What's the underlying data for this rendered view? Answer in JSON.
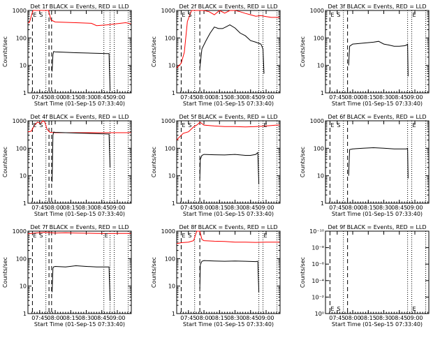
{
  "figure": {
    "background": "#ffffff",
    "axis_color": "#000000",
    "events_color": "#000000",
    "lld_color": "#ff0000"
  },
  "chart_data": [
    {
      "type": "line",
      "title": "Det 1f BLACK = Events, RED = LLD",
      "xlabel": "Start Time (01-Sep-15 07:33:40)",
      "ylabel": "Counts/sec",
      "x_ticks": [
        "07:45",
        "08:00",
        "08:15",
        "08:30",
        "08:45",
        "09:00"
      ],
      "x_tick_minutes": [
        45,
        60,
        75,
        90,
        105,
        120
      ],
      "xlim_minutes": [
        33.67,
        133.5
      ],
      "y_scale": "log",
      "ylim": [
        1,
        1000
      ],
      "y_tick_labels": [
        "1",
        "10",
        "100",
        "1000"
      ],
      "y_tick_values": [
        1,
        10,
        100,
        1000
      ],
      "markers": [
        {
          "label": "E",
          "minute": 38
        },
        {
          "label": "S",
          "minute": 44
        }
      ],
      "marker_lines_dashed": [
        38,
        54,
        56.5
      ],
      "marker_lines_dotted": [
        51,
        107,
        113,
        117,
        130.5
      ],
      "series": [
        {
          "color": "#ff0000",
          "x": [
            33.7,
            35,
            38.5,
            42,
            45,
            50,
            53.5,
            56,
            60,
            70,
            80,
            95,
            100,
            110,
            120,
            128,
            133
          ],
          "y": [
            350,
            360,
            1000,
            1000,
            1000,
            1000,
            1000,
            450,
            380,
            370,
            360,
            340,
            280,
            300,
            330,
            360,
            330
          ]
        },
        {
          "color": "#000000",
          "x": [
            57,
            57.8,
            58.5,
            60,
            70,
            80,
            95,
            110,
            112,
            113
          ],
          "y": [
            6,
            25,
            32,
            31,
            30,
            29,
            28,
            27,
            27,
            1.2
          ]
        }
      ]
    },
    {
      "type": "line",
      "title": "Det 2f BLACK = Events, RED = LLD",
      "xlabel": "Start Time (01-Sep-15 07:33:40)",
      "ylabel": "Counts/sec",
      "x_ticks": [
        "07:45",
        "08:00",
        "08:15",
        "08:30",
        "08:45",
        "09:00"
      ],
      "x_tick_minutes": [
        45,
        60,
        75,
        90,
        105,
        120
      ],
      "xlim_minutes": [
        33.67,
        133.5
      ],
      "y_scale": "log",
      "ylim": [
        1,
        1000
      ],
      "y_tick_labels": [
        "1",
        "10",
        "100",
        "1000"
      ],
      "y_tick_values": [
        1,
        10,
        100,
        1000
      ],
      "markers": [
        {
          "label": "E",
          "minute": 38
        },
        {
          "label": "S",
          "minute": 44
        }
      ],
      "marker_lines_dashed": [
        38,
        56
      ],
      "marker_lines_dotted": [
        51,
        113,
        117,
        130.5
      ],
      "series": [
        {
          "color": "#ff0000",
          "x": [
            33.7,
            38,
            41,
            44,
            48,
            52,
            56,
            60,
            65,
            70,
            75,
            80,
            85,
            90,
            95,
            100,
            105,
            110,
            115,
            120,
            125,
            128,
            133
          ],
          "y": [
            8,
            12,
            30,
            400,
            1000,
            1000,
            1000,
            1200,
            900,
            700,
            1000,
            800,
            1000,
            1200,
            900,
            780,
            700,
            620,
            650,
            600,
            560,
            560,
            560
          ]
        },
        {
          "color": "#000000",
          "x": [
            56,
            58,
            62,
            66,
            70,
            74,
            78,
            81,
            85,
            90,
            95,
            100,
            105,
            110,
            115,
            117,
            118
          ],
          "y": [
            8,
            40,
            80,
            150,
            250,
            220,
            220,
            250,
            300,
            230,
            150,
            120,
            80,
            70,
            60,
            40,
            5
          ]
        }
      ]
    },
    {
      "type": "line",
      "title": "Det 3f BLACK = Events, RED = LLD",
      "xlabel": "Start Time (01-Sep-15 07:33:40)",
      "ylabel": "Counts/sec",
      "x_ticks": [
        "07:45",
        "08:00",
        "08:15",
        "08:30",
        "08:45",
        "09:00"
      ],
      "x_tick_minutes": [
        45,
        60,
        75,
        90,
        105,
        120
      ],
      "xlim_minutes": [
        33.67,
        133.5
      ],
      "y_scale": "log",
      "ylim": [
        1,
        1000
      ],
      "y_tick_labels": [
        "1",
        "10",
        "100",
        "1000"
      ],
      "y_tick_values": [
        1,
        10,
        100,
        1000
      ],
      "markers": [
        {
          "label": "E",
          "minute": 38
        },
        {
          "label": "S",
          "minute": 44
        },
        {
          "label": "E",
          "minute": 117
        }
      ],
      "marker_lines_dashed": [
        38,
        55
      ],
      "marker_lines_dotted": [
        51,
        113,
        117,
        130.5
      ],
      "series": [
        {
          "color": "#000000",
          "x": [
            56,
            57,
            60,
            70,
            80,
            85,
            90,
            95,
            100,
            105,
            110,
            112,
            113,
            113.5
          ],
          "y": [
            10,
            50,
            60,
            65,
            70,
            75,
            60,
            55,
            50,
            50,
            52,
            55,
            60,
            4
          ]
        }
      ]
    },
    {
      "type": "line",
      "title": "Det 4f BLACK = Events, RED = LLD",
      "xlabel": "Start Time (01-Sep-15 07:33:40)",
      "ylabel": "Counts/sec",
      "x_ticks": [
        "07:45",
        "08:00",
        "08:15",
        "08:30",
        "08:45",
        "09:00"
      ],
      "x_tick_minutes": [
        45,
        60,
        75,
        90,
        105,
        120
      ],
      "xlim_minutes": [
        33.67,
        133.5
      ],
      "y_scale": "log",
      "ylim": [
        1,
        1000
      ],
      "y_tick_labels": [
        "1",
        "10",
        "100",
        "1000"
      ],
      "y_tick_values": [
        1,
        10,
        100,
        1000
      ],
      "markers": [
        {
          "label": "E",
          "minute": 38
        },
        {
          "label": "S",
          "minute": 44
        }
      ],
      "marker_lines_dashed": [
        38,
        54,
        56.5
      ],
      "marker_lines_dotted": [
        51,
        107,
        113,
        117,
        130.5
      ],
      "series": [
        {
          "color": "#ff0000",
          "x": [
            33.7,
            37,
            40,
            43,
            46,
            48,
            50,
            52,
            55,
            60,
            80,
            100,
            120,
            133
          ],
          "y": [
            400,
            420,
            700,
            900,
            800,
            1000,
            900,
            500,
            380,
            370,
            370,
            370,
            370,
            370
          ]
        },
        {
          "color": "#000000",
          "x": [
            57,
            57.8,
            58.5,
            60,
            70,
            80,
            90,
            100,
            110,
            112,
            113
          ],
          "y": [
            6,
            300,
            390,
            380,
            370,
            360,
            350,
            340,
            330,
            330,
            20
          ]
        }
      ]
    },
    {
      "type": "line",
      "title": "Det 5f BLACK = Events, RED = LLD",
      "xlabel": "Start Time (01-Sep-15 07:33:40)",
      "ylabel": "Counts/sec",
      "x_ticks": [
        "07:45",
        "08:00",
        "08:15",
        "08:30",
        "08:45",
        "09:00"
      ],
      "x_tick_minutes": [
        45,
        60,
        75,
        90,
        105,
        120
      ],
      "xlim_minutes": [
        33.67,
        133.5
      ],
      "y_scale": "log",
      "ylim": [
        1,
        1000
      ],
      "y_tick_labels": [
        "1",
        "10",
        "100",
        "1000"
      ],
      "y_tick_values": [
        1,
        10,
        100,
        1000
      ],
      "markers": [
        {
          "label": "E",
          "minute": 38
        },
        {
          "label": "S",
          "minute": 44
        },
        {
          "label": "E",
          "minute": 117
        }
      ],
      "marker_lines_dashed": [
        38,
        56
      ],
      "marker_lines_dotted": [
        51,
        113,
        117,
        130.5
      ],
      "series": [
        {
          "color": "#ff0000",
          "x": [
            33.7,
            36,
            40,
            45,
            50,
            53,
            55,
            56,
            60,
            70,
            80,
            90,
            100,
            110,
            120,
            130,
            133
          ],
          "y": [
            200,
            250,
            350,
            400,
            600,
            700,
            800,
            900,
            700,
            650,
            620,
            620,
            600,
            620,
            650,
            700,
            700
          ]
        },
        {
          "color": "#000000",
          "x": [
            56,
            56.5,
            58,
            60,
            70,
            80,
            90,
            100,
            105,
            110,
            112,
            113
          ],
          "y": [
            8,
            40,
            55,
            60,
            58,
            57,
            60,
            55,
            55,
            60,
            70,
            5
          ]
        }
      ]
    },
    {
      "type": "line",
      "title": "Det 6f BLACK = Events, RED = LLD",
      "xlabel": "Start Time (01-Sep-15 07:33:40)",
      "ylabel": "Counts/sec",
      "x_ticks": [
        "07:45",
        "08:00",
        "08:15",
        "08:30",
        "08:45",
        "09:00"
      ],
      "x_tick_minutes": [
        45,
        60,
        75,
        90,
        105,
        120
      ],
      "xlim_minutes": [
        33.67,
        133.5
      ],
      "y_scale": "log",
      "ylim": [
        1,
        1000
      ],
      "y_tick_labels": [
        "1",
        "10",
        "100",
        "1000"
      ],
      "y_tick_values": [
        1,
        10,
        100,
        1000
      ],
      "markers": [
        {
          "label": "E",
          "minute": 38
        },
        {
          "label": "S",
          "minute": 44
        },
        {
          "label": "E",
          "minute": 117
        }
      ],
      "marker_lines_dashed": [
        38,
        55
      ],
      "marker_lines_dotted": [
        51,
        113,
        117,
        130.5
      ],
      "series": [
        {
          "color": "#000000",
          "x": [
            56,
            57,
            60,
            70,
            80,
            90,
            100,
            110,
            112,
            113,
            113.5
          ],
          "y": [
            10,
            90,
            95,
            100,
            105,
            100,
            95,
            95,
            95,
            100,
            8
          ]
        }
      ]
    },
    {
      "type": "line",
      "title": "Det 7f BLACK = Events, RED = LLD",
      "xlabel": "Start Time (01-Sep-15 07:33:40)",
      "ylabel": "Counts/sec",
      "x_ticks": [
        "07:45",
        "08:00",
        "08:15",
        "08:30",
        "08:45",
        "09:00"
      ],
      "x_tick_minutes": [
        45,
        60,
        75,
        90,
        105,
        120
      ],
      "xlim_minutes": [
        33.67,
        133.5
      ],
      "y_scale": "log",
      "ylim": [
        1,
        1000
      ],
      "y_tick_labels": [
        "1",
        "10",
        "100",
        "1000"
      ],
      "y_tick_values": [
        1,
        10,
        100,
        1000
      ],
      "markers": [
        {
          "label": "E",
          "minute": 38
        },
        {
          "label": "S",
          "minute": 44
        },
        {
          "label": "E",
          "minute": 107
        }
      ],
      "marker_lines_dashed": [
        38,
        54,
        56.5
      ],
      "marker_lines_dotted": [
        51,
        107,
        113,
        117,
        130.5
      ],
      "series": [
        {
          "color": "#ff0000",
          "x": [
            33.7,
            40,
            50,
            60,
            70,
            80,
            90,
            100,
            110,
            120,
            130,
            133
          ],
          "y": [
            800,
            850,
            900,
            850,
            870,
            850,
            840,
            830,
            820,
            830,
            830,
            820
          ]
        },
        {
          "color": "#000000",
          "x": [
            57,
            57.8,
            58.5,
            60,
            70,
            80,
            90,
            100,
            110,
            112,
            113
          ],
          "y": [
            6,
            45,
            50,
            52,
            50,
            55,
            52,
            50,
            50,
            50,
            3
          ]
        }
      ]
    },
    {
      "type": "line",
      "title": "Det 8f BLACK = Events, RED = LLD",
      "xlabel": "Start Time (01-Sep-15 07:33:40)",
      "ylabel": "Counts/sec",
      "x_ticks": [
        "07:45",
        "08:00",
        "08:15",
        "08:30",
        "08:45",
        "09:00"
      ],
      "x_tick_minutes": [
        45,
        60,
        75,
        90,
        105,
        120
      ],
      "xlim_minutes": [
        33.67,
        133.5
      ],
      "y_scale": "log",
      "ylim": [
        1,
        1000
      ],
      "y_tick_labels": [
        "1",
        "10",
        "100",
        "1000"
      ],
      "y_tick_values": [
        1,
        10,
        100,
        1000
      ],
      "markers": [
        {
          "label": "E",
          "minute": 38
        },
        {
          "label": "S",
          "minute": 44
        },
        {
          "label": "E",
          "minute": 117
        }
      ],
      "marker_lines_dashed": [
        38,
        56
      ],
      "marker_lines_dotted": [
        51,
        113,
        117,
        130.5
      ],
      "series": [
        {
          "color": "#ff0000",
          "x": [
            33.7,
            38,
            45,
            50,
            53,
            55,
            56,
            58,
            60,
            70,
            80,
            90,
            100,
            110,
            120,
            130,
            133
          ],
          "y": [
            350,
            380,
            400,
            450,
            1000,
            1000,
            1000,
            500,
            450,
            430,
            420,
            400,
            400,
            390,
            400,
            400,
            400
          ]
        },
        {
          "color": "#000000",
          "x": [
            56,
            56.5,
            58,
            60,
            70,
            80,
            90,
            100,
            110,
            112,
            113
          ],
          "y": [
            8,
            60,
            80,
            85,
            82,
            80,
            82,
            80,
            78,
            80,
            6
          ]
        }
      ]
    },
    {
      "type": "line",
      "title": "Det 9f BLACK = Events, RED = LLD",
      "xlabel": "Start Time (01-Sep-15 07:33:40)",
      "ylabel": "Counts/sec",
      "x_ticks": [
        "07:45",
        "08:00",
        "08:15",
        "08:30",
        "08:45",
        "09:00"
      ],
      "x_tick_minutes": [
        45,
        60,
        75,
        90,
        105,
        120
      ],
      "xlim_minutes": [
        33.67,
        133.5
      ],
      "y_scale": "log",
      "ylim": [
        1,
        1e-10
      ],
      "y_tick_labels": [
        "10⁰",
        "10⁻²",
        "10⁻⁴",
        "10⁻⁶",
        "10⁻⁸",
        "10⁻¹⁰"
      ],
      "y_tick_values": [
        1,
        0.01,
        0.0001,
        1e-06,
        1e-08,
        1e-10
      ],
      "markers": [
        {
          "label": "E",
          "minute": 38
        },
        {
          "label": "S",
          "minute": 44
        },
        {
          "label": "E",
          "minute": 117
        }
      ],
      "marker_lines_dashed": [
        38,
        55
      ],
      "marker_lines_dotted": [
        51,
        113,
        117,
        130.5
      ],
      "series": []
    }
  ]
}
